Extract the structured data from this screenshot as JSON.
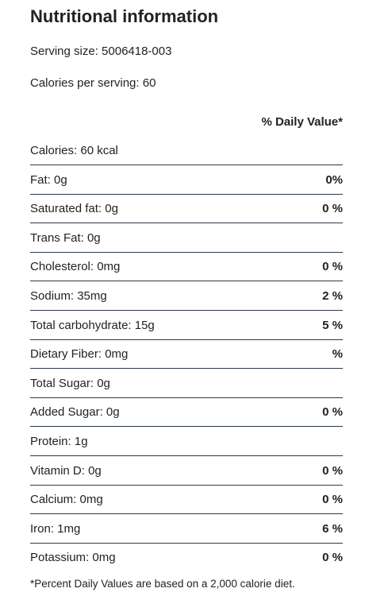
{
  "header": {
    "title": "Nutritional information",
    "serving_size": "Serving size: 5006418-003",
    "calories_per_serving": "Calories per serving: 60"
  },
  "table": {
    "column_header": "% Daily Value*",
    "rows": [
      {
        "label": "Calories: 60 kcal"
      },
      {
        "label": "Fat: 0g",
        "value": "0%"
      },
      {
        "label": "Saturated fat: 0g",
        "value": "0 %"
      },
      {
        "label": "Trans Fat: 0g"
      },
      {
        "label": "Cholesterol: 0mg",
        "value": "0 %"
      },
      {
        "label": "Sodium: 35mg",
        "value": "2 %"
      },
      {
        "label": "Total carbohydrate: 15g",
        "value": "5 %"
      },
      {
        "label": "Dietary Fiber: 0mg",
        "value": "%"
      },
      {
        "label": "Total Sugar: 0g"
      },
      {
        "label": "Added Sugar: 0g",
        "value": "0 %"
      },
      {
        "label": "Protein: 1g"
      },
      {
        "label": "Vitamin D: 0g",
        "value": "0 %"
      },
      {
        "label": "Calcium: 0mg",
        "value": "0 %"
      },
      {
        "label": "Iron: 1mg",
        "value": "6 %"
      },
      {
        "label": "Potassium: 0mg",
        "value": "0 %"
      }
    ]
  },
  "footnote": "*Percent Daily Values are based on a 2,000 calorie diet."
}
